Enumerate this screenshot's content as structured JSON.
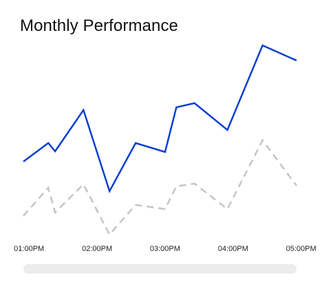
{
  "page": {
    "title": "Monthly Performance"
  },
  "colors": {
    "primary": "#0a3fd0",
    "secondary": "#c4c4c4",
    "scroll_track": "#ececec"
  },
  "chart_data": {
    "type": "line",
    "title": "Monthly Performance",
    "xlabel": "",
    "ylabel": "",
    "x_ticks": [
      "01:00PM",
      "02:00PM",
      "03:00PM",
      "04:00PM",
      "05:00PM"
    ],
    "x": [
      "12:55PM",
      "01:17PM",
      "01:23PM",
      "01:48PM",
      "02:11PM",
      "02:34PM",
      "03:00PM",
      "03:10PM",
      "03:26PM",
      "03:55PM",
      "04:26PM",
      "04:56PM"
    ],
    "series": [
      {
        "name": "",
        "style": "solid",
        "color": "#0a3fd0",
        "values": [
          205,
          232,
          220,
          280,
          162,
          232,
          219,
          284,
          290,
          251,
          374,
          352
        ]
      },
      {
        "name": "",
        "style": "dashed",
        "color": "#c4c4c4",
        "values": [
          126,
          167,
          131,
          172,
          99,
          142,
          136,
          169,
          173,
          136,
          236,
          170
        ]
      }
    ],
    "ylim": [
      60,
      400
    ],
    "grid": false,
    "legend": "none"
  }
}
